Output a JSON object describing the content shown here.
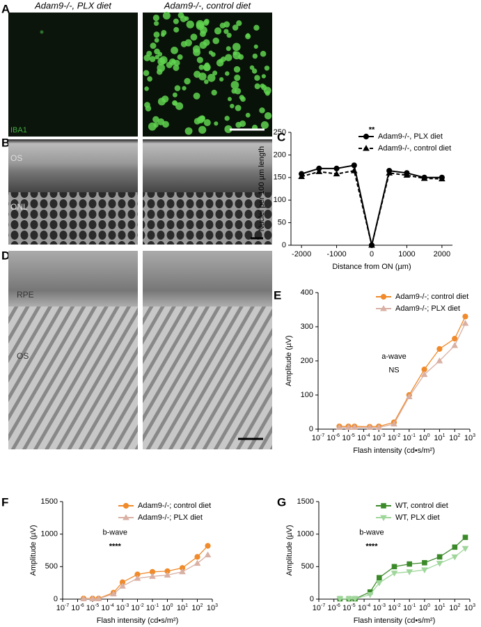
{
  "figure": {
    "panel_a": {
      "letter": "A",
      "left_title": "Adam9-/-, PLX diet",
      "right_title": "Adam9-/-, control diet",
      "stain": "IBA1"
    },
    "panel_b": {
      "letter": "B",
      "layer_labels": [
        "OS",
        "ONL"
      ]
    },
    "panel_d": {
      "letter": "D",
      "layer_labels": [
        "RPE",
        "OS"
      ]
    }
  },
  "chart_data": [
    {
      "type": "line",
      "panel": "C",
      "x_label": "Distance from ON (µm)",
      "y_label": "Nuclei per 100 µm length",
      "x": [
        -2000,
        -1500,
        -1000,
        -500,
        0,
        500,
        1000,
        1500,
        2000
      ],
      "series": [
        {
          "name": "Adam9-/-, PLX diet",
          "color": "#000000",
          "marker": "circle",
          "dash": false,
          "values": [
            158,
            170,
            170,
            177,
            0,
            165,
            160,
            150,
            150
          ]
        },
        {
          "name": "Adam9-/-, control diet",
          "color": "#000000",
          "marker": "triangle",
          "dash": true,
          "values": [
            152,
            163,
            158,
            165,
            0,
            160,
            155,
            148,
            147
          ]
        }
      ],
      "xlim": [
        -2300,
        2300
      ],
      "xticks": [
        -2000,
        -1000,
        0,
        1000,
        2000
      ],
      "log_x": false,
      "ylim": [
        0,
        250
      ],
      "yticks": [
        0,
        50,
        100,
        150,
        200,
        250
      ],
      "annotations": [
        "**"
      ],
      "legend": "upper right"
    },
    {
      "type": "line",
      "panel": "E",
      "x_label": "Flash intensity (cd•s/m²)",
      "y_label": "Amplitude (µV)",
      "x": [
        2.5e-06,
        1e-05,
        2.5e-05,
        0.00025,
        0.001,
        0.01,
        0.1,
        1,
        10,
        100,
        500
      ],
      "series": [
        {
          "name": "Adam9-/-; control diet",
          "color": "#f08a2a",
          "marker": "circle",
          "dash": false,
          "values": [
            8,
            8,
            8,
            7,
            8,
            20,
            100,
            175,
            235,
            265,
            330
          ]
        },
        {
          "name": "Adam9-/-; PLX diet",
          "color": "#d9b0a3",
          "marker": "triangle",
          "dash": false,
          "values": [
            5,
            5,
            5,
            5,
            5,
            15,
            95,
            160,
            200,
            245,
            310
          ]
        }
      ],
      "xlim": [
        1e-07,
        1000
      ],
      "log_x": true,
      "xticks": [
        {
          "value": 1e-07,
          "label": "10-7"
        },
        {
          "value": 1e-06,
          "label": "10-6"
        },
        {
          "value": 1e-05,
          "label": "10-5"
        },
        {
          "value": 0.0001,
          "label": "10-4"
        },
        {
          "value": 0.001,
          "label": "10-3"
        },
        {
          "value": 0.01,
          "label": "10-2"
        },
        {
          "value": 0.1,
          "label": "10-1"
        },
        {
          "value": 1,
          "label": "100"
        },
        {
          "value": 10,
          "label": "101"
        },
        {
          "value": 100,
          "label": "102"
        },
        {
          "value": 1000,
          "label": "103"
        }
      ],
      "ylim": [
        0,
        400
      ],
      "yticks": [
        0,
        100,
        200,
        300,
        400
      ],
      "annotations": [
        "a-wave",
        "NS"
      ],
      "legend": "upper right"
    },
    {
      "type": "line",
      "panel": "F",
      "x_label": "Flash intensity (cd•s/m²)",
      "y_label": "Amplitude (µV)",
      "x": [
        2.5e-06,
        1e-05,
        2.5e-05,
        0.00025,
        0.001,
        0.01,
        0.1,
        1,
        10,
        100,
        500
      ],
      "series": [
        {
          "name": "Adam9-/-; control diet",
          "color": "#f08a2a",
          "marker": "circle",
          "dash": false,
          "values": [
            10,
            10,
            10,
            100,
            260,
            380,
            420,
            430,
            480,
            650,
            820
          ]
        },
        {
          "name": "Adam9-/-; PLX diet",
          "color": "#d9b0a3",
          "marker": "triangle",
          "dash": false,
          "values": [
            5,
            5,
            5,
            80,
            200,
            320,
            350,
            370,
            420,
            550,
            680
          ]
        }
      ],
      "xlim": [
        1e-07,
        1000
      ],
      "log_x": true,
      "xticks": [
        {
          "value": 1e-07,
          "label": "10-7"
        },
        {
          "value": 1e-06,
          "label": "10-6"
        },
        {
          "value": 1e-05,
          "label": "10-5"
        },
        {
          "value": 0.0001,
          "label": "10-4"
        },
        {
          "value": 0.001,
          "label": "10-3"
        },
        {
          "value": 0.01,
          "label": "10-2"
        },
        {
          "value": 0.1,
          "label": "10-1"
        },
        {
          "value": 1,
          "label": "100"
        },
        {
          "value": 10,
          "label": "101"
        },
        {
          "value": 100,
          "label": "102"
        },
        {
          "value": 1000,
          "label": "103"
        }
      ],
      "ylim": [
        0,
        1500
      ],
      "yticks": [
        0,
        500,
        1000,
        1500
      ],
      "annotations": [
        "b-wave",
        "****"
      ],
      "legend": "upper right"
    },
    {
      "type": "line",
      "panel": "G",
      "x_label": "Flash intensity (cd•s/m²)",
      "y_label": "Amplitude (µV)",
      "x": [
        2.5e-06,
        1e-05,
        2.5e-05,
        0.00025,
        0.001,
        0.01,
        0.1,
        1,
        10,
        100,
        500
      ],
      "series": [
        {
          "name": "WT, control diet",
          "color": "#3b8a2a",
          "marker": "square",
          "dash": false,
          "values": [
            5,
            5,
            5,
            110,
            330,
            500,
            540,
            560,
            650,
            800,
            950
          ]
        },
        {
          "name": "WT, PLX diet",
          "color": "#9fd69a",
          "marker": "triangle-down",
          "dash": false,
          "values": [
            5,
            5,
            5,
            70,
            250,
            400,
            420,
            450,
            550,
            650,
            780
          ]
        }
      ],
      "xlim": [
        1e-07,
        1000
      ],
      "log_x": true,
      "xticks": [
        {
          "value": 1e-07,
          "label": "10-7"
        },
        {
          "value": 1e-06,
          "label": "10-6"
        },
        {
          "value": 1e-05,
          "label": "10-5"
        },
        {
          "value": 0.0001,
          "label": "10-4"
        },
        {
          "value": 0.001,
          "label": "10-3"
        },
        {
          "value": 0.01,
          "label": "10-2"
        },
        {
          "value": 0.1,
          "label": "10-1"
        },
        {
          "value": 1,
          "label": "100"
        },
        {
          "value": 10,
          "label": "101"
        },
        {
          "value": 100,
          "label": "102"
        },
        {
          "value": 1000,
          "label": "103"
        }
      ],
      "ylim": [
        0,
        1500
      ],
      "yticks": [
        0,
        500,
        1000,
        1500
      ],
      "annotations": [
        "b-wave",
        "****"
      ],
      "legend": "upper right"
    }
  ]
}
